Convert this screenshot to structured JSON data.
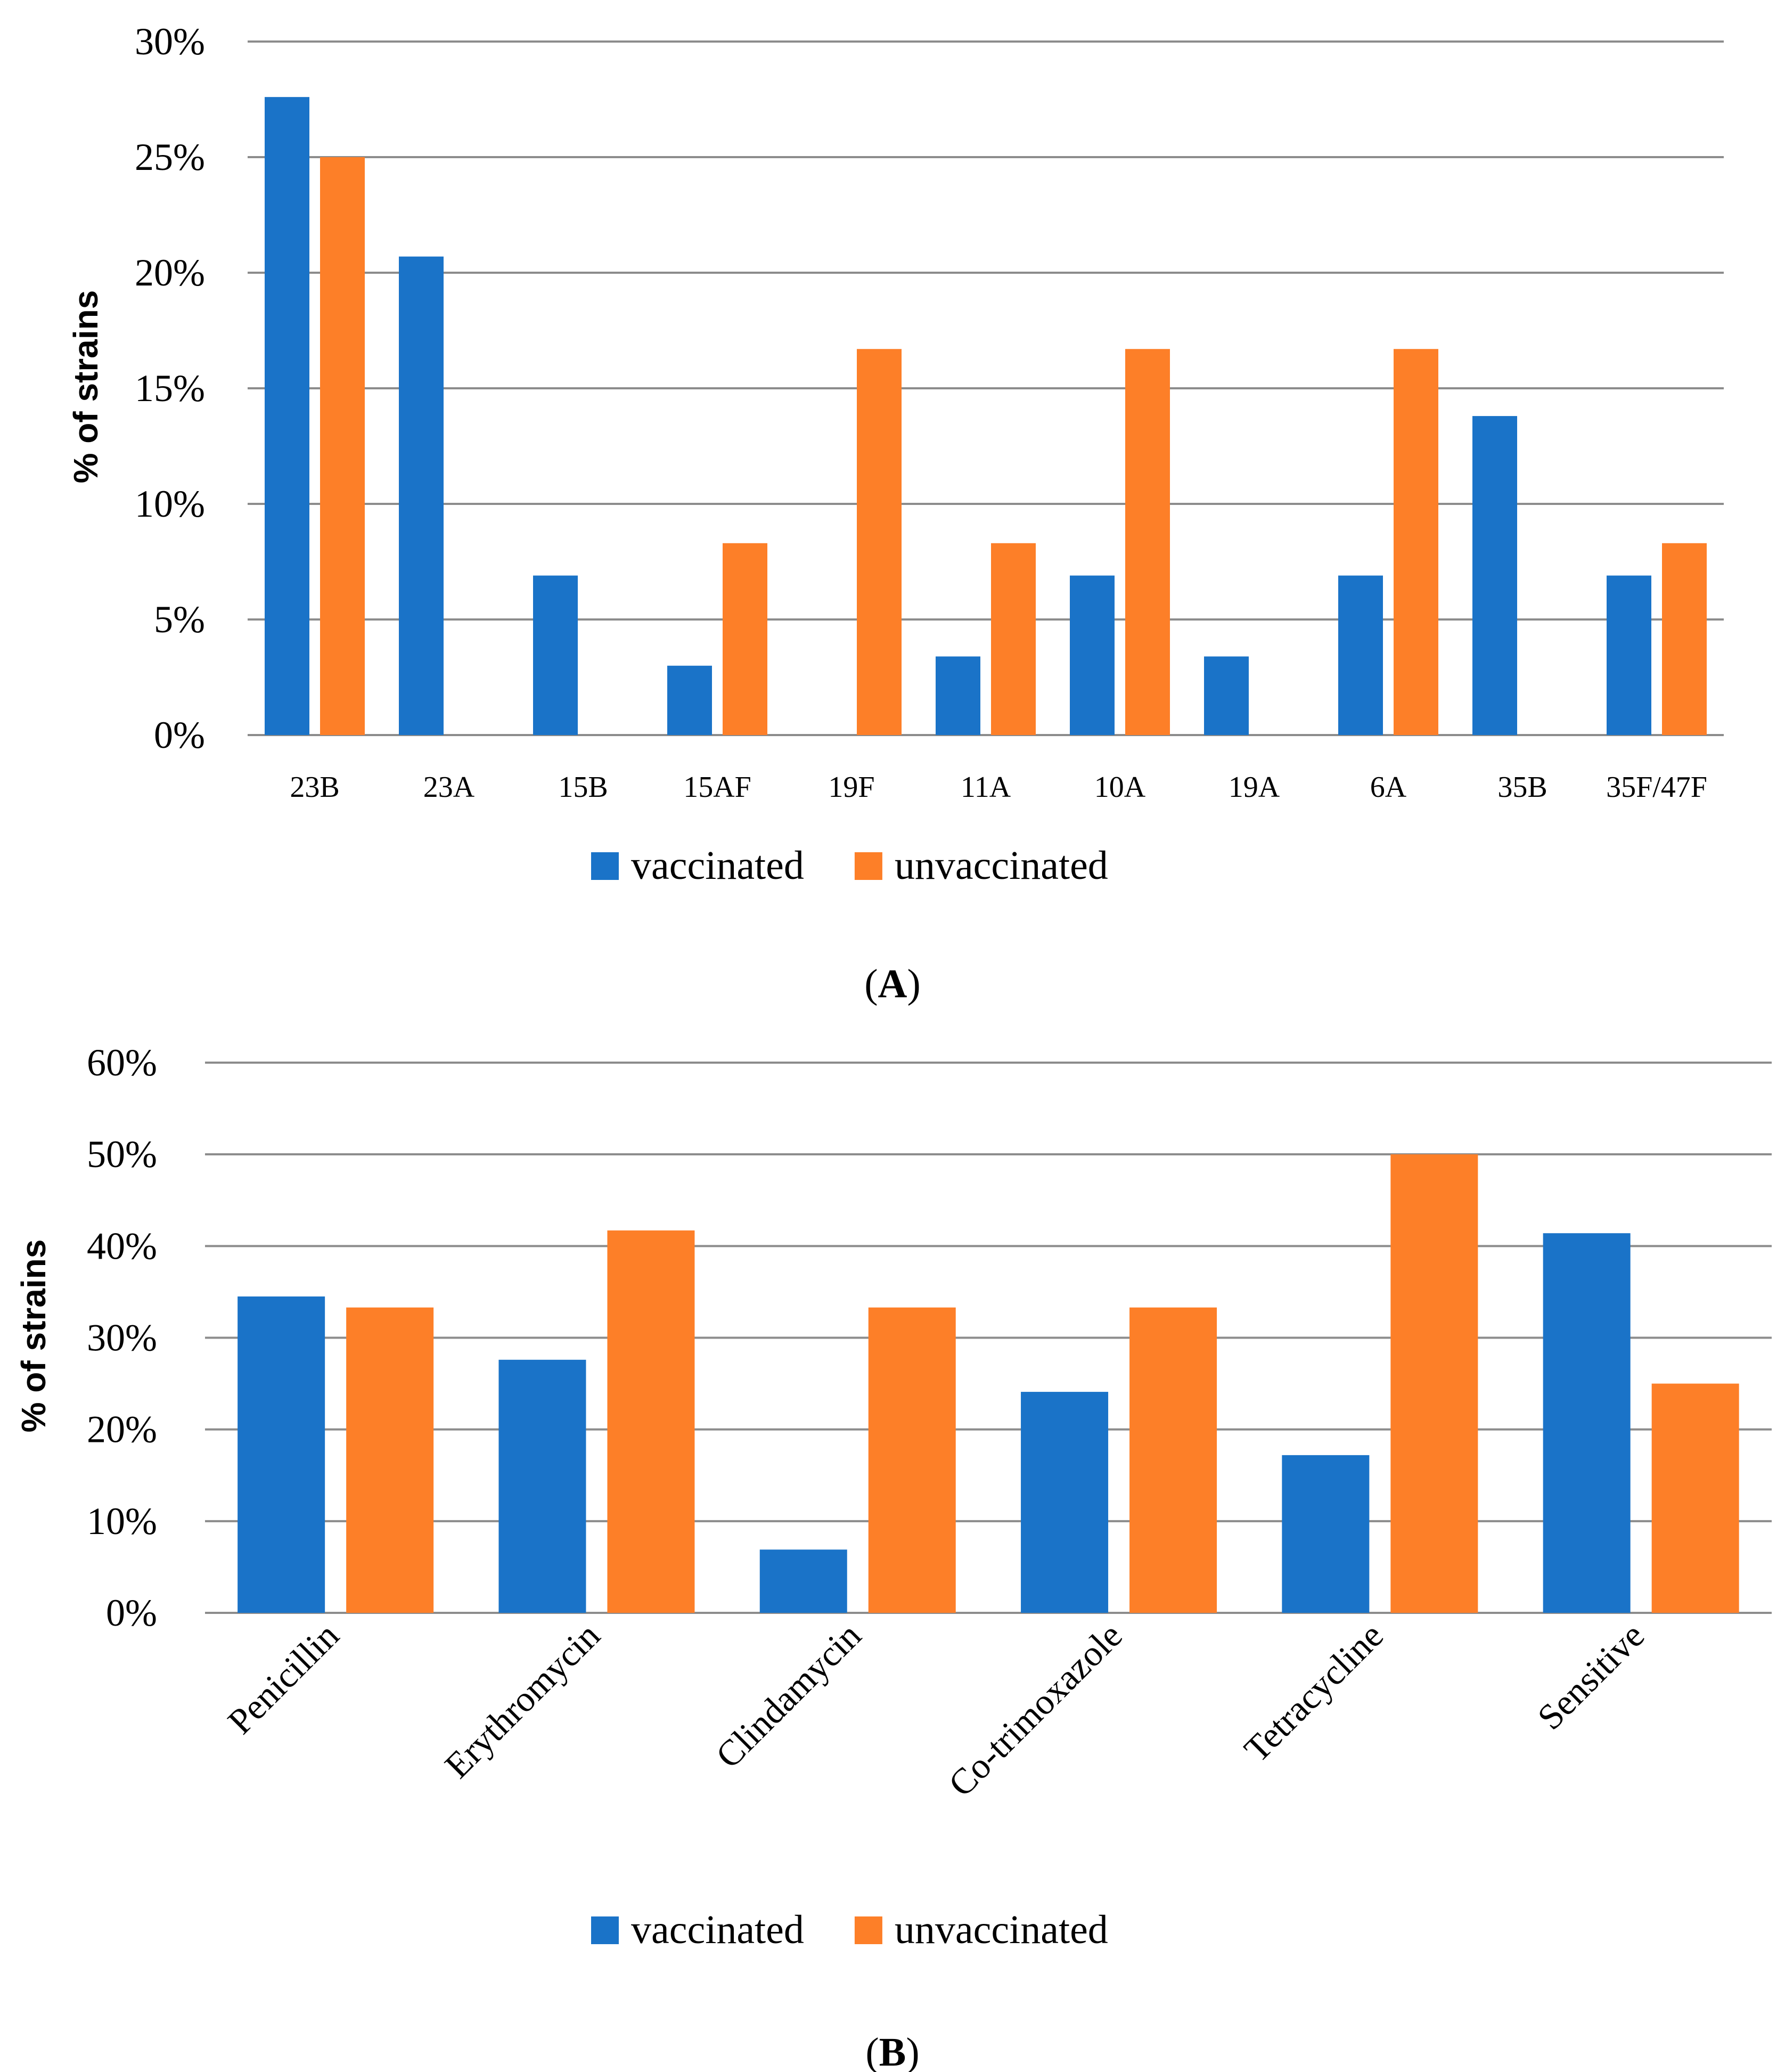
{
  "colors": {
    "vaccinated": "#1a73c8",
    "unvaccinated": "#fd7f28",
    "grid": "#8c8c8c",
    "axis": "#8c8c8c"
  },
  "chart_data": [
    {
      "type": "bar",
      "panel_label": "A",
      "ylabel": "% of strains",
      "ylim": [
        0,
        30
      ],
      "ytick_values": [
        0,
        5,
        10,
        15,
        20,
        25,
        30
      ],
      "ytick_labels": [
        "0%",
        "5%",
        "10%",
        "15%",
        "20%",
        "25%",
        "30%"
      ],
      "grid": true,
      "legend_position": "bottom-center",
      "categories": [
        "23B",
        "23A",
        "15B",
        "15AF",
        "19F",
        "11A",
        "10A",
        "19A",
        "6A",
        "35B",
        "35F/47F"
      ],
      "series": [
        {
          "name": "vaccinated",
          "values": [
            27.6,
            20.7,
            6.9,
            3.0,
            0,
            3.4,
            6.9,
            3.4,
            6.9,
            13.8,
            6.9
          ]
        },
        {
          "name": "unvaccinated",
          "values": [
            25.0,
            0,
            0,
            8.3,
            16.7,
            8.3,
            16.7,
            0,
            16.7,
            0,
            8.3
          ]
        }
      ]
    },
    {
      "type": "bar",
      "panel_label": "B",
      "ylabel": "% of  strains",
      "ylim": [
        0,
        60
      ],
      "ytick_values": [
        0,
        10,
        20,
        30,
        40,
        50,
        60
      ],
      "ytick_labels": [
        "0%",
        "10%",
        "20%",
        "30%",
        "40%",
        "50%",
        "60%"
      ],
      "grid": true,
      "legend_position": "bottom-center",
      "categories": [
        "Penicillin",
        "Erythromycin",
        "Clindamycin",
        "Co-trimoxazole",
        "Tetracycline",
        "Sensitive"
      ],
      "series": [
        {
          "name": "vaccinated",
          "values": [
            34.5,
            27.6,
            6.9,
            24.1,
            17.2,
            41.4
          ]
        },
        {
          "name": "unvaccinated",
          "values": [
            33.3,
            41.7,
            33.3,
            33.3,
            50.0,
            25.0
          ]
        }
      ]
    }
  ]
}
